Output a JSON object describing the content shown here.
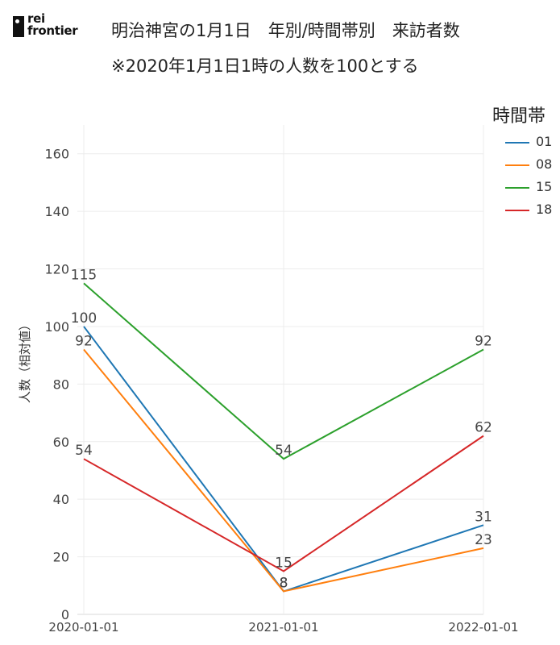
{
  "logo": {
    "line1": "rei",
    "line2": "frontier"
  },
  "chart_data": {
    "type": "line",
    "title": "明治神宮の1月1日　年別/時間帯別　来訪者数",
    "subtitle": "※2020年1月1日1時の人数を100とする",
    "ylabel": "人数（相対値）",
    "xlabel": "",
    "categories": [
      "2020-01-01",
      "2021-01-01",
      "2022-01-01"
    ],
    "ylim": [
      0,
      170
    ],
    "yticks": [
      0,
      20,
      40,
      60,
      80,
      100,
      120,
      140,
      160
    ],
    "grid": true,
    "legend_title": "時間帯",
    "legend_position": "top-right",
    "series": [
      {
        "name": "01",
        "color": "#1f77b4",
        "values": [
          100,
          8,
          31
        ]
      },
      {
        "name": "08",
        "color": "#ff7f0e",
        "values": [
          92,
          8,
          23
        ]
      },
      {
        "name": "15",
        "color": "#2ca02c",
        "values": [
          115,
          54,
          92
        ]
      },
      {
        "name": "18",
        "color": "#d62728",
        "values": [
          54,
          15,
          62
        ]
      }
    ]
  }
}
